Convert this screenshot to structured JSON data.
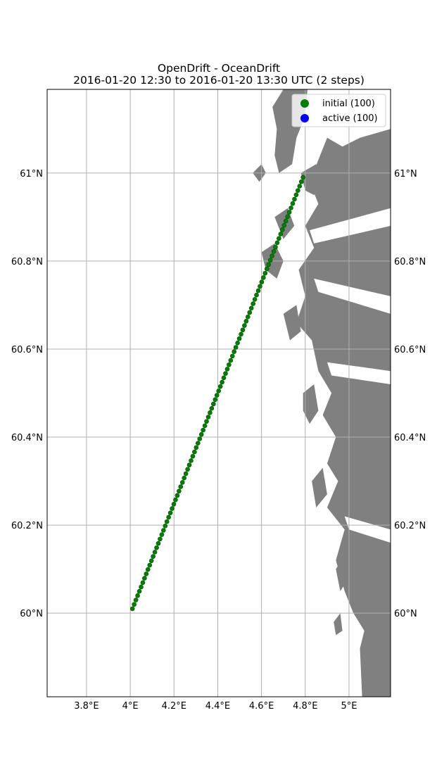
{
  "title": {
    "line1": "OpenDrift - OceanDrift",
    "line2": "2016-01-20 12:30 to 2016-01-20 13:30 UTC (2 steps)"
  },
  "colors": {
    "land": "#808080",
    "grid": "#b0b0b0",
    "initial": "#008000",
    "active": "#0000ff"
  },
  "legend": {
    "position": "top-right",
    "items": [
      {
        "label": "initial (100)",
        "color": "#008000"
      },
      {
        "label": "active (100)",
        "color": "#0000ff"
      }
    ]
  },
  "chart_data": {
    "type": "scatter",
    "projection": "map",
    "xlim": [
      3.62,
      5.19
    ],
    "ylim": [
      59.81,
      61.19
    ],
    "x_ticks": [
      {
        "value": 3.8,
        "label": "3.8°E"
      },
      {
        "value": 4.0,
        "label": "4°E"
      },
      {
        "value": 4.2,
        "label": "4.2°E"
      },
      {
        "value": 4.4,
        "label": "4.4°E"
      },
      {
        "value": 4.6,
        "label": "4.6°E"
      },
      {
        "value": 4.8,
        "label": "4.8°E"
      },
      {
        "value": 5.0,
        "label": "5°E"
      }
    ],
    "y_ticks": [
      {
        "value": 60.0,
        "label": "60°N"
      },
      {
        "value": 60.2,
        "label": "60.2°N"
      },
      {
        "value": 60.4,
        "label": "60.4°N"
      },
      {
        "value": 60.6,
        "label": "60.6°N"
      },
      {
        "value": 60.8,
        "label": "60.8°N"
      },
      {
        "value": 61.0,
        "label": "61°N"
      }
    ],
    "grid": true,
    "series": [
      {
        "name": "initial (100)",
        "count": 100,
        "from": {
          "lon": 4.01,
          "lat": 60.01
        },
        "to": {
          "lon": 4.79,
          "lat": 60.99
        }
      },
      {
        "name": "active (100)",
        "count": 100
      }
    ]
  }
}
